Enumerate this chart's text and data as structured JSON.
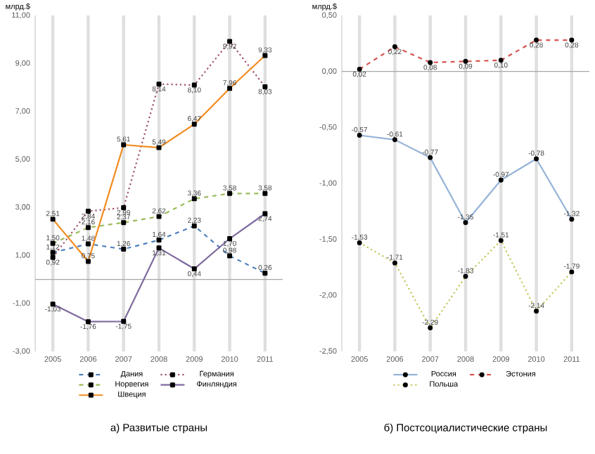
{
  "chart_data": [
    {
      "type": "line",
      "title": "а) Развитые страны",
      "ylabel": "млрд.$",
      "categories": [
        "2005",
        "2006",
        "2007",
        "2008",
        "2009",
        "2010",
        "2011"
      ],
      "ylim": [
        -3,
        11
      ],
      "yticks": [
        {
          "value": -3,
          "label": "-3,00"
        },
        {
          "value": -1,
          "label": "-1,00"
        },
        {
          "value": 1,
          "label": "1,00"
        },
        {
          "value": 3,
          "label": "3,00"
        },
        {
          "value": 5,
          "label": "5,00"
        },
        {
          "value": 7,
          "label": "7,00"
        },
        {
          "value": 9,
          "label": "9,00"
        },
        {
          "value": 11,
          "label": "11,00"
        }
      ],
      "grid": "x",
      "legend": "bottom",
      "marker": "square",
      "ref_lines": [
        {
          "axis": "y",
          "value": 0,
          "color": "#a6a6a6"
        }
      ],
      "series": [
        {
          "name": "Дания",
          "color": "#4f81bd",
          "line_style": "dashed",
          "values": [
            1.12,
            1.48,
            1.26,
            1.64,
            2.23,
            0.98,
            0.26
          ],
          "value_labels": [
            "1,12",
            "1,48",
            "1,26",
            "1,64",
            "2,23",
            "0,98",
            "0,26"
          ]
        },
        {
          "name": "Германия",
          "color": "#a0506a",
          "line_style": "dotted",
          "values": [
            0.92,
            2.84,
            2.99,
            8.14,
            8.1,
            9.92,
            8.03
          ],
          "value_labels": [
            "0,92",
            "2,84",
            "2,99",
            "8,14",
            "8,10",
            "9,92",
            "8,03"
          ]
        },
        {
          "name": "Норвегия",
          "color": "#9bbb59",
          "line_style": "dashed",
          "values": [
            1.5,
            2.16,
            2.37,
            2.62,
            3.36,
            3.58,
            3.58
          ],
          "value_labels": [
            "1,50",
            "2,16",
            "2,37",
            "2,62",
            "3,36",
            "3,58",
            "3,58"
          ]
        },
        {
          "name": "Финляндия",
          "color": "#7f6a9e",
          "line_style": "solid",
          "values": [
            -1.03,
            -1.76,
            -1.75,
            1.31,
            0.44,
            1.7,
            2.74
          ],
          "value_labels": [
            "-1,03",
            "-1,76",
            "-1,75",
            "1,31",
            "0,44",
            "1,70",
            "2,74"
          ]
        },
        {
          "name": "Швеция",
          "color": "#f28a1e",
          "line_style": "solid",
          "values": [
            2.51,
            0.75,
            5.61,
            5.49,
            6.47,
            7.96,
            9.33
          ],
          "value_labels": [
            "2,51",
            "0,75",
            "5,61",
            "5,49",
            "6,47",
            "7,96",
            "9,33"
          ]
        }
      ]
    },
    {
      "type": "line",
      "title": "б) Постсоциалистические страны",
      "ylabel": "млрд.$",
      "categories": [
        "2005",
        "2006",
        "2007",
        "2008",
        "2009",
        "2010",
        "2011"
      ],
      "ylim": [
        -2.5,
        0.5
      ],
      "yticks": [
        {
          "value": -2.5,
          "label": "-2,50"
        },
        {
          "value": -2,
          "label": "-2,00"
        },
        {
          "value": -1.5,
          "label": "-1,50"
        },
        {
          "value": -1,
          "label": "-1,00"
        },
        {
          "value": -0.5,
          "label": "-0,50"
        },
        {
          "value": 0,
          "label": "0,00"
        },
        {
          "value": 0.5,
          "label": "0,50"
        }
      ],
      "grid": "x",
      "legend": "bottom",
      "marker": "circle",
      "ref_lines": [
        {
          "axis": "y",
          "value": 0,
          "color": "#a6a6a6"
        }
      ],
      "series": [
        {
          "name": "Россия",
          "color": "#95b3d7",
          "line_style": "solid",
          "values": [
            -0.57,
            -0.61,
            -0.77,
            -1.35,
            -0.97,
            -0.78,
            -1.32
          ],
          "value_labels": [
            "-0,57",
            "-0,61",
            "-0,77",
            "-1,35",
            "-0,97",
            "-0,78",
            "-1,32"
          ]
        },
        {
          "name": "Эстония",
          "color": "#d9534f",
          "line_style": "dashed",
          "values": [
            0.02,
            0.22,
            0.08,
            0.09,
            0.1,
            0.28,
            0.28
          ],
          "value_labels": [
            "0,02",
            "0,22",
            "0,08",
            "0,09",
            "0,10",
            "0,28",
            "0,28"
          ]
        },
        {
          "name": "Польша",
          "color": "#c4c45a",
          "line_style": "dotted",
          "values": [
            -1.53,
            -1.71,
            -2.29,
            -1.83,
            -1.51,
            -2.14,
            -1.79
          ],
          "value_labels": [
            "-1,53",
            "-1,71",
            "-2,29",
            "-1,83",
            "-1,51",
            "-2,14",
            "-1,79"
          ]
        }
      ]
    }
  ]
}
